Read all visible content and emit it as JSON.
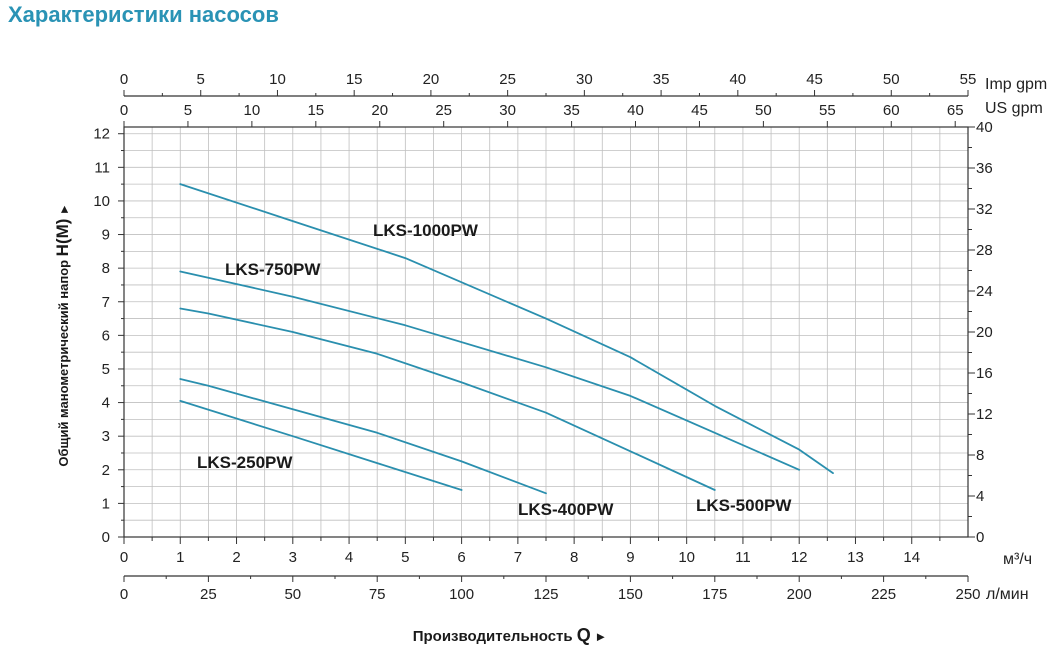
{
  "page": {
    "title": "Характеристики насосов"
  },
  "chart_data": {
    "type": "line",
    "colors": {
      "curve": "#2a8fae",
      "grid": "#bfbfbf",
      "title": "#2a93b5"
    },
    "x_axis": {
      "label": "Производительность",
      "symbol": "Q",
      "arrow": "►",
      "range": [
        0,
        15
      ],
      "ticks": [
        0,
        1,
        2,
        3,
        4,
        5,
        6,
        7,
        8,
        9,
        10,
        11,
        12,
        13,
        14
      ],
      "unit": "м³/ч"
    },
    "x_axis_lmin": {
      "range": [
        0,
        250
      ],
      "ticks": [
        0,
        25,
        50,
        75,
        100,
        125,
        150,
        175,
        200,
        225,
        250
      ],
      "unit": "л/мин"
    },
    "x_axis_top_us": {
      "range": [
        0,
        66
      ],
      "ticks": [
        0,
        5,
        10,
        15,
        20,
        25,
        30,
        35,
        40,
        45,
        50,
        55,
        60,
        65
      ],
      "unit": "US gpm"
    },
    "x_axis_top_imp": {
      "range": [
        0,
        55
      ],
      "ticks": [
        0,
        5,
        10,
        15,
        20,
        25,
        30,
        35,
        40,
        45,
        50,
        55
      ],
      "unit": "Imp gpm"
    },
    "y_axis": {
      "label": "Общий манометрический напор",
      "symbol": "H(M)",
      "arrow": "►",
      "range": [
        0,
        12.2
      ],
      "ticks": [
        0,
        1,
        2,
        3,
        4,
        5,
        6,
        7,
        8,
        9,
        10,
        11,
        12
      ]
    },
    "y_axis_right": {
      "range": [
        0,
        40
      ],
      "ticks": [
        0,
        4,
        8,
        12,
        16,
        20,
        24,
        28,
        32,
        36,
        40
      ]
    },
    "grid": true,
    "series": [
      {
        "name": "LKS-1000PW",
        "x": [
          1,
          3,
          5,
          7.5,
          9,
          10.5,
          12,
          12.6
        ],
        "y": [
          10.5,
          9.4,
          8.3,
          6.5,
          5.35,
          3.9,
          2.6,
          1.9
        ]
      },
      {
        "name": "LKS-750PW",
        "x": [
          1,
          3,
          5,
          7.5,
          9,
          10.5,
          12
        ],
        "y": [
          7.9,
          7.15,
          6.3,
          5.05,
          4.2,
          3.1,
          2.0
        ]
      },
      {
        "name": "LKS-500PW",
        "x": [
          1,
          1.5,
          3,
          4.5,
          6,
          7.5,
          9,
          10.5
        ],
        "y": [
          6.8,
          6.65,
          6.1,
          5.45,
          4.6,
          3.7,
          2.55,
          1.4
        ]
      },
      {
        "name": "LKS-400PW",
        "x": [
          1,
          1.5,
          3,
          4.5,
          6,
          7.5
        ],
        "y": [
          4.7,
          4.5,
          3.8,
          3.1,
          2.25,
          1.3
        ]
      },
      {
        "name": "LKS-250PW",
        "x": [
          1,
          3,
          4.5,
          6
        ],
        "y": [
          4.05,
          3.0,
          2.2,
          1.4
        ]
      }
    ]
  }
}
